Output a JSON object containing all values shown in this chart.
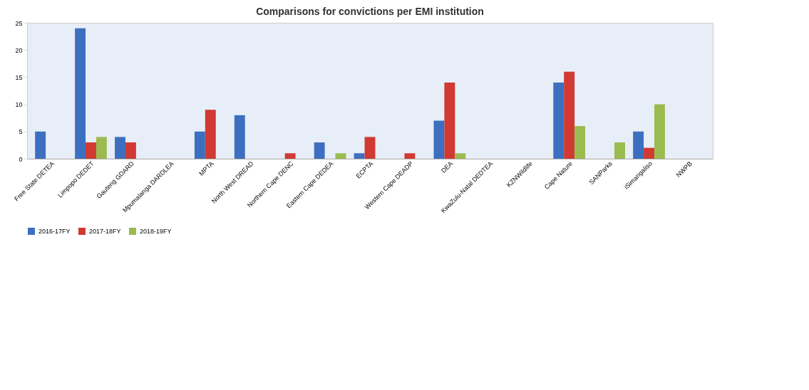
{
  "chart_data": {
    "type": "bar",
    "title": "Comparisons for convictions per EMI institution",
    "categories": [
      "Free State DETEA",
      "Limpopo DEDET",
      "Gauteng GDARD",
      "Mpumalanga DARDLEA",
      "MPTA",
      "North West DREAD",
      "Northern Cape DENC",
      "Eastern Cape DEDEA",
      "ECPTA",
      "Western Cape DEADP",
      "DEA",
      "KwaZulu-Natal DEDTEA",
      "KZNWildlife",
      "Cape Nature",
      "SANParks",
      "iSimangaliso",
      "NWPB"
    ],
    "series": [
      {
        "name": "2016-17FY",
        "color": "#3d6fc1",
        "values": [
          5,
          24,
          4,
          0,
          5,
          8,
          0,
          3,
          1,
          0,
          7,
          0,
          0,
          14,
          0,
          5,
          0
        ]
      },
      {
        "name": "2017-18FY",
        "color": "#d03a33",
        "values": [
          0,
          3,
          3,
          0,
          9,
          0,
          1,
          0,
          4,
          1,
          14,
          0,
          0,
          16,
          0,
          2,
          0
        ]
      },
      {
        "name": "2018-19FY",
        "color": "#9bbb4f",
        "values": [
          0,
          4,
          0,
          0,
          0,
          0,
          0,
          1,
          0,
          0,
          1,
          0,
          0,
          6,
          3,
          10,
          0
        ]
      }
    ],
    "ylim": [
      0,
      25
    ],
    "yticks": [
      0,
      5,
      10,
      15,
      20,
      25
    ],
    "grid": false,
    "legend": "bottom"
  }
}
